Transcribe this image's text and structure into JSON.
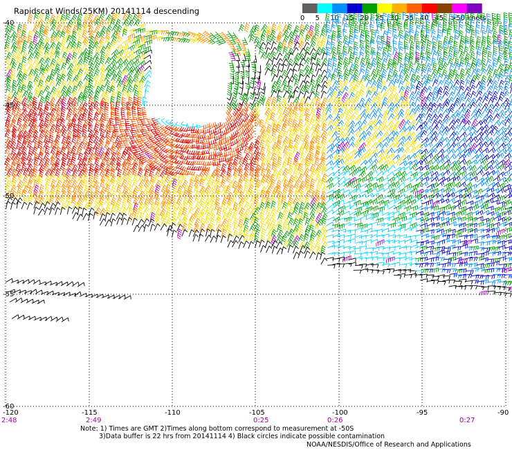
{
  "title": "Rapidscat Winds(25KM) 20141114 descending",
  "legend": {
    "labels": [
      "0",
      "5",
      "10",
      "15",
      "20",
      "25",
      "30",
      "35",
      "40",
      "45",
      ">50 knots"
    ],
    "colors": [
      "#606060",
      "#00ffff",
      "#0090ff",
      "#0000d0",
      "#00a000",
      "#ffff00",
      "#ffb000",
      "#ff6000",
      "#ff0000",
      "#8a4000",
      "#ff00ff",
      "#8000c0"
    ]
  },
  "axes": {
    "lon_labels": [
      "-120",
      "-115",
      "-110",
      "-105",
      "-100",
      "-95",
      "-90"
    ],
    "lat_labels": [
      "-40",
      "-45",
      "-50",
      "-55",
      "-60"
    ],
    "times": [
      {
        "lon": -120,
        "label": "2:48"
      },
      {
        "lon": -115,
        "label": "2:49"
      },
      {
        "lon": -105,
        "label": "0:25"
      },
      {
        "lon": -100,
        "label": "0:26"
      },
      {
        "lon": -93,
        "label": "0:27"
      }
    ],
    "time_color": "#a000a0"
  },
  "notes": {
    "line1": "Note: 1) Times are GMT 2)Times along bottom correspond to measurement at -50S",
    "line2": "3)Data buffer is 22 hrs from 20141114 4) Black circles indicate possible contamination",
    "credit": "NOAA/NESDIS/Office of Research and Applications"
  }
}
